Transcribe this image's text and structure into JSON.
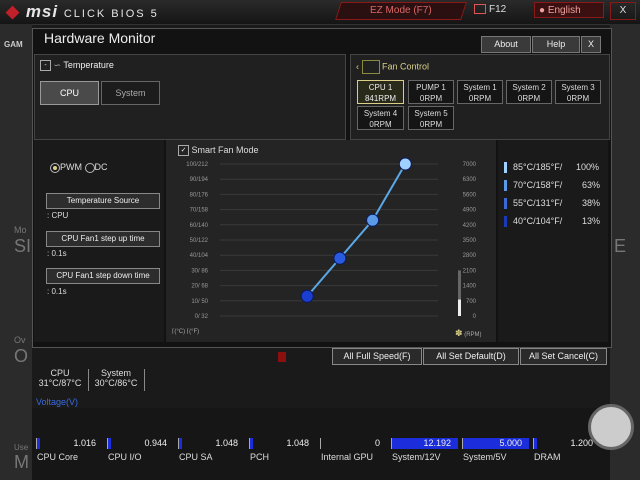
{
  "topbar": {
    "brand": "msi",
    "product": "CLICK BIOS 5",
    "ez_mode": "EZ Mode (F7)",
    "f12": "F12",
    "language": "English",
    "close": "X"
  },
  "background": {
    "gam_label": "GAM",
    "left_letters": [
      "Mo",
      "SI",
      "Ov",
      "O",
      "Use",
      "M"
    ],
    "right_letter": "E"
  },
  "dialog": {
    "title": "Hardware Monitor",
    "about": "About",
    "help": "Help",
    "close": "X"
  },
  "temperature": {
    "header": "Temperature",
    "tabs": [
      "CPU",
      "System"
    ],
    "selected_tab": "CPU"
  },
  "fan_control": {
    "header": "Fan Control",
    "fans": [
      {
        "name": "CPU 1",
        "rpm": "841RPM",
        "selected": true
      },
      {
        "name": "PUMP 1",
        "rpm": "0RPM"
      },
      {
        "name": "System 1",
        "rpm": "0RPM"
      },
      {
        "name": "System 2",
        "rpm": "0RPM"
      },
      {
        "name": "System 3",
        "rpm": "0RPM"
      },
      {
        "name": "System 4",
        "rpm": "0RPM"
      },
      {
        "name": "System 5",
        "rpm": "0RPM"
      }
    ]
  },
  "left_controls": {
    "pwm": "PWM",
    "dc": "DC",
    "selected_mode": "PWM",
    "temp_source_label": "Temperature Source",
    "temp_source_value": ": CPU",
    "step_up_label": "CPU Fan1 step up time",
    "step_up_value": ": 0.1s",
    "step_down_label": "CPU Fan1 step down time",
    "step_down_value": ": 0.1s"
  },
  "smart_fan": {
    "label": "Smart Fan Mode",
    "checked": true,
    "check_mark": "✓",
    "unit_c": "(°C)",
    "unit_f": "(°F)",
    "unit_rpm": "(RPM)"
  },
  "chart_data": {
    "type": "line",
    "left_axis_ticks": [
      "100/212",
      "90/194",
      "80/176",
      "70/158",
      "60/140",
      "50/122",
      "40/104",
      "30/ 86",
      "20/ 68",
      "10/ 50",
      "0/ 32"
    ],
    "right_axis_ticks": [
      "7000",
      "6300",
      "5600",
      "4900",
      "4200",
      "3500",
      "2800",
      "2100",
      "1400",
      "700",
      "0"
    ],
    "xlim": [
      0,
      100
    ],
    "ylim": [
      0,
      100
    ],
    "points": [
      {
        "x": 40,
        "y": 13
      },
      {
        "x": 55,
        "y": 38
      },
      {
        "x": 70,
        "y": 63
      },
      {
        "x": 85,
        "y": 100
      }
    ],
    "current_rpm_percent": 12,
    "line_color": "#5aa8e8",
    "point_color": "#1a3fd0"
  },
  "legend": [
    {
      "temp": "85°C/185°F/",
      "pct": "100%",
      "color": "#9fd0ff"
    },
    {
      "temp": "70°C/158°F/",
      "pct": "63%",
      "color": "#5a9ae8"
    },
    {
      "temp": "55°C/131°F/",
      "pct": "38%",
      "color": "#3a6ad8"
    },
    {
      "temp": "40°C/104°F/",
      "pct": "13%",
      "color": "#1a3ab8"
    }
  ],
  "actions": {
    "full_speed": "All Full Speed(F)",
    "set_default": "All Set Default(D)",
    "set_cancel": "All Set Cancel(C)"
  },
  "temps": [
    {
      "name": "CPU",
      "value": "31°C/87°C"
    },
    {
      "name": "System",
      "value": "30°C/86°C"
    }
  ],
  "voltage": {
    "label": "Voltage(V)",
    "items": [
      {
        "name": "CPU Core",
        "value": "1.016",
        "fill": 0.03
      },
      {
        "name": "CPU I/O",
        "value": "0.944",
        "fill": 0.03
      },
      {
        "name": "CPU SA",
        "value": "1.048",
        "fill": 0.03
      },
      {
        "name": "PCH",
        "value": "1.048",
        "fill": 0.03
      },
      {
        "name": "Internal GPU",
        "value": "0",
        "fill": 0
      },
      {
        "name": "System/12V",
        "value": "12.192",
        "fill": 0.98
      },
      {
        "name": "System/5V",
        "value": "5.000",
        "fill": 0.98
      },
      {
        "name": "DRAM",
        "value": "1.200",
        "fill": 0.03
      }
    ]
  }
}
